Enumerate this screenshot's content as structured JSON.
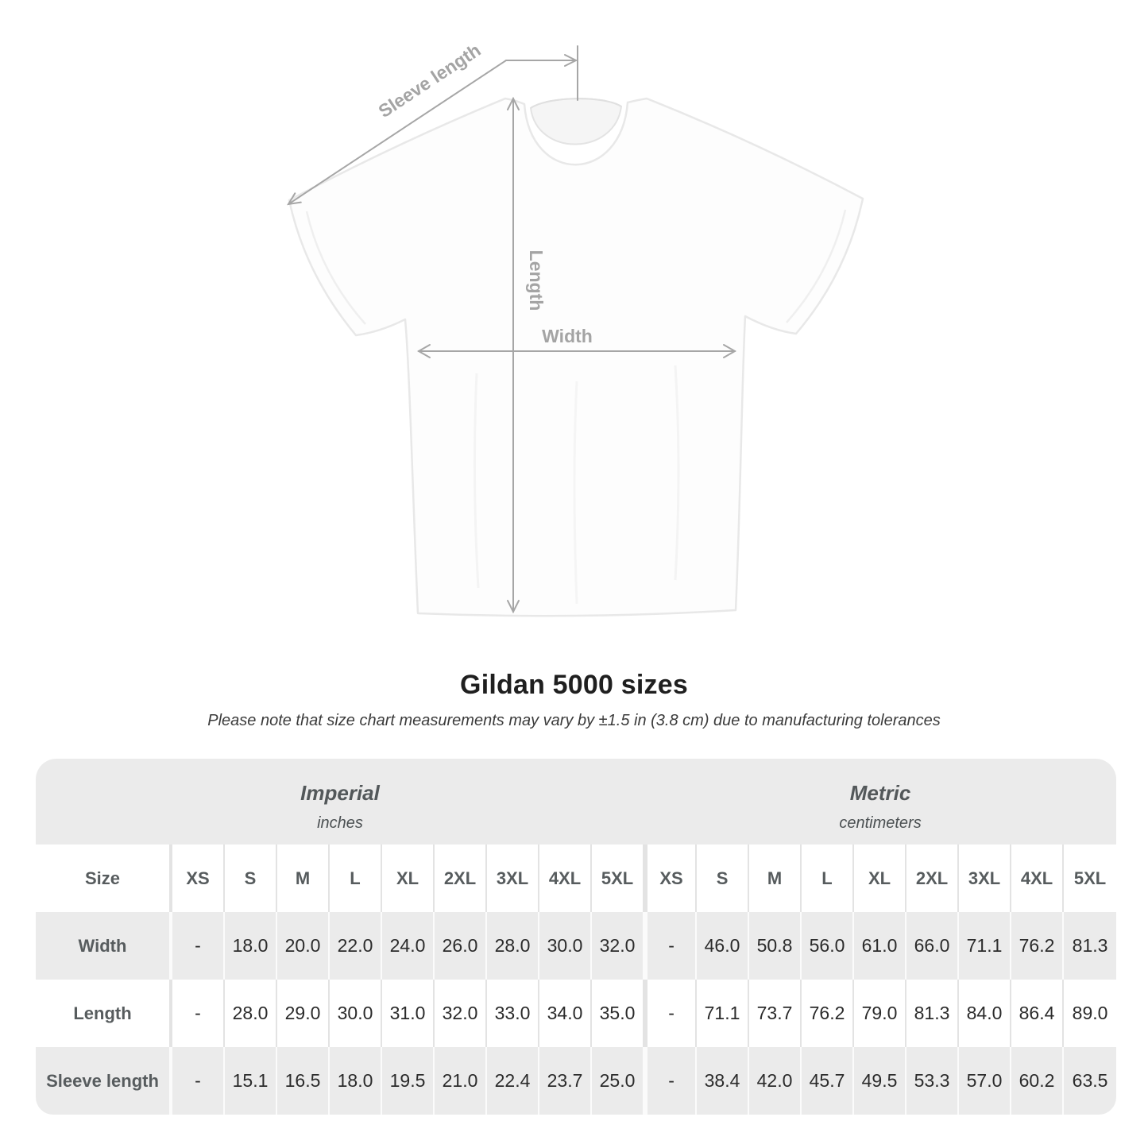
{
  "diagram": {
    "labels": {
      "sleeve": "Sleeve length",
      "length": "Length",
      "width": "Width"
    },
    "line_color": "#a6a6a6",
    "label_color": "#a4a4a4"
  },
  "title": "Gildan 5000 sizes",
  "subtitle": "Please note that size chart measurements may vary by ±1.5 in (3.8 cm) due to manufacturing tolerances",
  "chart_data": {
    "type": "table",
    "unit_groups": [
      {
        "name": "Imperial",
        "unit": "inches"
      },
      {
        "name": "Metric",
        "unit": "centimeters"
      }
    ],
    "size_label": "Size",
    "sizes": [
      "XS",
      "S",
      "M",
      "L",
      "XL",
      "2XL",
      "3XL",
      "4XL",
      "5XL"
    ],
    "rows": [
      {
        "label": "Width",
        "imperial": [
          "-",
          "18.0",
          "20.0",
          "22.0",
          "24.0",
          "26.0",
          "28.0",
          "30.0",
          "32.0"
        ],
        "metric": [
          "-",
          "46.0",
          "50.8",
          "56.0",
          "61.0",
          "66.0",
          "71.1",
          "76.2",
          "81.3"
        ]
      },
      {
        "label": "Length",
        "imperial": [
          "-",
          "28.0",
          "29.0",
          "30.0",
          "31.0",
          "32.0",
          "33.0",
          "34.0",
          "35.0"
        ],
        "metric": [
          "-",
          "71.1",
          "73.7",
          "76.2",
          "79.0",
          "81.3",
          "84.0",
          "86.4",
          "89.0"
        ]
      },
      {
        "label": "Sleeve length",
        "imperial": [
          "-",
          "15.1",
          "16.5",
          "18.0",
          "19.5",
          "21.0",
          "22.4",
          "23.7",
          "25.0"
        ],
        "metric": [
          "-",
          "38.4",
          "42.0",
          "45.7",
          "49.5",
          "53.3",
          "57.0",
          "60.2",
          "63.5"
        ]
      }
    ]
  }
}
